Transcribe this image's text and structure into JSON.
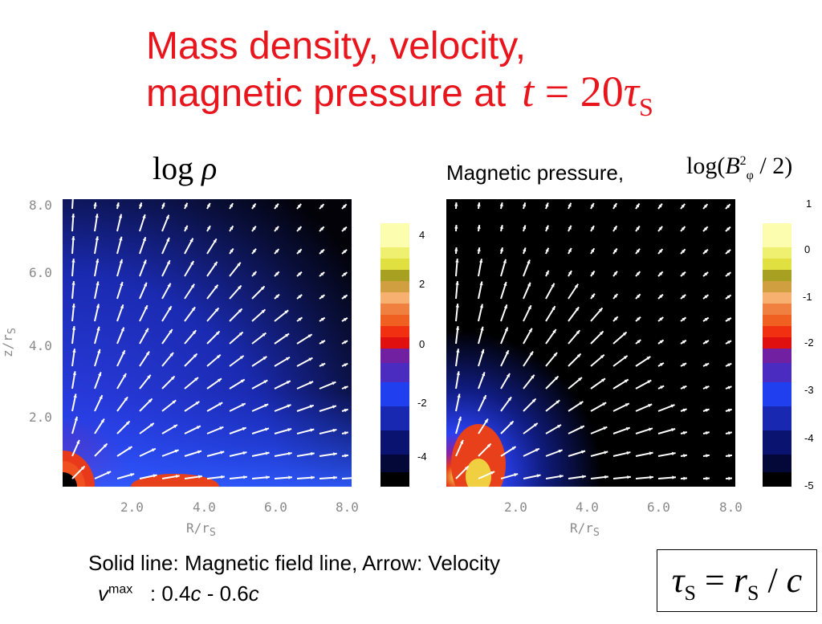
{
  "title": {
    "line1": "Mass density, velocity,",
    "line2": "magnetic pressure at",
    "equation_t": "t",
    "equation_eq": "= 20",
    "equation_tau": "τ",
    "equation_sub": "S"
  },
  "left_panel": {
    "label_log": "log",
    "label_rho": "ρ",
    "colorbar_ticks": [
      "4",
      "2",
      "0",
      "-2",
      "-4"
    ]
  },
  "right_panel": {
    "label": "Magnetic pressure,",
    "label_log": "log(",
    "label_B": "B",
    "label_sup": "2",
    "label_sub": "φ",
    "label_rest": " / 2)",
    "colorbar_ticks": [
      "1",
      "0",
      "-1",
      "-2",
      "-3",
      "-4",
      "-5"
    ]
  },
  "axes": {
    "y_ticks": [
      "8.0",
      "6.0",
      "4.0",
      "2.0"
    ],
    "x_ticks": [
      "2.0",
      "4.0",
      "6.0",
      "8.0"
    ],
    "xlabel": "R/r",
    "xlabel_sub": "S",
    "ylabel": "z/r",
    "ylabel_sub": "S"
  },
  "caption": {
    "line1": "Solid line: Magnetic field line, Arrow: Velocity",
    "v": "v",
    "v_sup": "max",
    "v_range_a": ": 0.4",
    "v_c1": "c",
    "v_range_b": " - 0.6",
    "v_c2": "c"
  },
  "timescale_box": {
    "tau": "τ",
    "tau_sub": "S",
    "eq": " = ",
    "r": "r",
    "r_sub": "S",
    "slash": " / ",
    "c": "c"
  },
  "colors": {
    "title": "#e8151d",
    "arrows": "#ffffff",
    "axis_text": "#8a8a8a"
  }
}
